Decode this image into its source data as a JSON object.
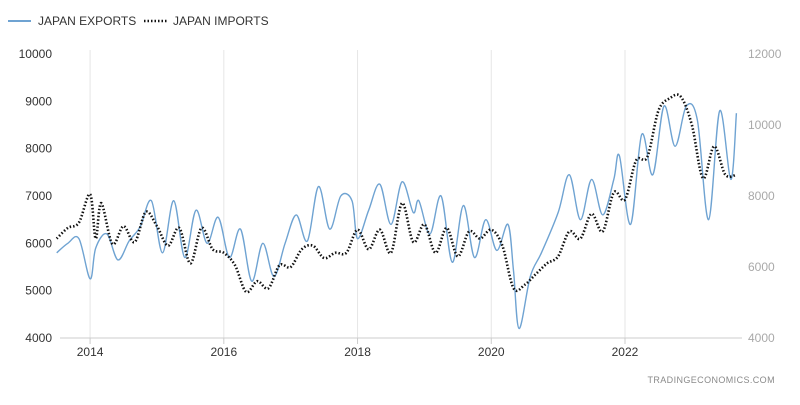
{
  "chart_data": {
    "type": "line",
    "legend": {
      "placement": "top-left",
      "entries": [
        "JAPAN EXPORTS",
        "JAPAN IMPORTS"
      ]
    },
    "credit": "TRADINGECONOMICS.COM",
    "x_ticks": [
      "2014",
      "2016",
      "2018",
      "2020",
      "2022"
    ],
    "y_left": {
      "ticks": [
        "4000",
        "5000",
        "6000",
        "7000",
        "8000",
        "9000",
        "10000"
      ],
      "range": [
        4000,
        10000
      ]
    },
    "y_right": {
      "ticks": [
        "4000",
        "6000",
        "8000",
        "10000",
        "12000"
      ],
      "range": [
        4000,
        12000
      ]
    },
    "grid": "vertical",
    "series": [
      {
        "name": "JAPAN EXPORTS",
        "axis": "left",
        "style": "solid",
        "color": "#6fa3d2",
        "points": [
          [
            "2013-07",
            5800
          ],
          [
            "2013-09",
            6000
          ],
          [
            "2013-11",
            6100
          ],
          [
            "2014-01",
            5250
          ],
          [
            "2014-02",
            5900
          ],
          [
            "2014-04",
            6200
          ],
          [
            "2014-06",
            5650
          ],
          [
            "2014-08",
            6050
          ],
          [
            "2014-10",
            6350
          ],
          [
            "2014-12",
            6900
          ],
          [
            "2015-02",
            5800
          ],
          [
            "2015-04",
            6900
          ],
          [
            "2015-06",
            5700
          ],
          [
            "2015-08",
            6700
          ],
          [
            "2015-10",
            6000
          ],
          [
            "2015-12",
            6550
          ],
          [
            "2016-02",
            5700
          ],
          [
            "2016-04",
            6300
          ],
          [
            "2016-06",
            5200
          ],
          [
            "2016-08",
            6000
          ],
          [
            "2016-10",
            5300
          ],
          [
            "2016-12",
            6000
          ],
          [
            "2017-02",
            6600
          ],
          [
            "2017-04",
            6050
          ],
          [
            "2017-06",
            7200
          ],
          [
            "2017-08",
            6300
          ],
          [
            "2017-10",
            7000
          ],
          [
            "2017-12",
            6900
          ],
          [
            "2018-01",
            6100
          ],
          [
            "2018-03",
            6700
          ],
          [
            "2018-05",
            7250
          ],
          [
            "2018-07",
            6400
          ],
          [
            "2018-09",
            7300
          ],
          [
            "2018-11",
            6650
          ],
          [
            "2018-12",
            6900
          ],
          [
            "2019-02",
            6200
          ],
          [
            "2019-04",
            7000
          ],
          [
            "2019-06",
            5600
          ],
          [
            "2019-08",
            6800
          ],
          [
            "2019-10",
            5700
          ],
          [
            "2019-12",
            6500
          ],
          [
            "2020-02",
            5850
          ],
          [
            "2020-04",
            6400
          ],
          [
            "2020-05",
            5400
          ],
          [
            "2020-06",
            4200
          ],
          [
            "2020-08",
            5300
          ],
          [
            "2020-10",
            5800
          ],
          [
            "2021-01",
            6650
          ],
          [
            "2021-03",
            7450
          ],
          [
            "2021-05",
            6500
          ],
          [
            "2021-07",
            7350
          ],
          [
            "2021-09",
            6600
          ],
          [
            "2021-11",
            7350
          ],
          [
            "2021-12",
            7850
          ],
          [
            "2022-02",
            6400
          ],
          [
            "2022-04",
            8300
          ],
          [
            "2022-06",
            7450
          ],
          [
            "2022-08",
            8900
          ],
          [
            "2022-10",
            8050
          ],
          [
            "2022-12",
            8900
          ],
          [
            "2023-02",
            8600
          ],
          [
            "2023-04",
            6500
          ],
          [
            "2023-06",
            8800
          ],
          [
            "2023-08",
            7350
          ],
          [
            "2023-09",
            8750
          ]
        ]
      },
      {
        "name": "JAPAN IMPORTS",
        "axis": "right",
        "style": "dotted",
        "color": "#111111",
        "points": [
          [
            "2013-07",
            6800
          ],
          [
            "2013-09",
            7100
          ],
          [
            "2013-11",
            7250
          ],
          [
            "2014-01",
            8050
          ],
          [
            "2014-02",
            6800
          ],
          [
            "2014-03",
            7800
          ],
          [
            "2014-05",
            6650
          ],
          [
            "2014-07",
            7150
          ],
          [
            "2014-09",
            6700
          ],
          [
            "2014-11",
            7550
          ],
          [
            "2015-01",
            7150
          ],
          [
            "2015-03",
            6600
          ],
          [
            "2015-05",
            7100
          ],
          [
            "2015-07",
            6100
          ],
          [
            "2015-09",
            7100
          ],
          [
            "2015-11",
            6500
          ],
          [
            "2016-01",
            6400
          ],
          [
            "2016-03",
            6050
          ],
          [
            "2016-05",
            5300
          ],
          [
            "2016-07",
            5600
          ],
          [
            "2016-09",
            5400
          ],
          [
            "2016-11",
            6050
          ],
          [
            "2017-01",
            6000
          ],
          [
            "2017-03",
            6500
          ],
          [
            "2017-05",
            6600
          ],
          [
            "2017-07",
            6250
          ],
          [
            "2017-09",
            6400
          ],
          [
            "2017-11",
            6400
          ],
          [
            "2018-01",
            7050
          ],
          [
            "2018-03",
            6500
          ],
          [
            "2018-05",
            7050
          ],
          [
            "2018-07",
            6400
          ],
          [
            "2018-09",
            7800
          ],
          [
            "2018-11",
            6700
          ],
          [
            "2019-01",
            7200
          ],
          [
            "2019-03",
            6400
          ],
          [
            "2019-05",
            7100
          ],
          [
            "2019-07",
            6300
          ],
          [
            "2019-09",
            7000
          ],
          [
            "2019-11",
            6800
          ],
          [
            "2020-01",
            7050
          ],
          [
            "2020-03",
            6600
          ],
          [
            "2020-05",
            5400
          ],
          [
            "2020-07",
            5500
          ],
          [
            "2020-09",
            5800
          ],
          [
            "2020-11",
            6100
          ],
          [
            "2021-01",
            6300
          ],
          [
            "2021-03",
            7000
          ],
          [
            "2021-05",
            6800
          ],
          [
            "2021-07",
            7500
          ],
          [
            "2021-09",
            7000
          ],
          [
            "2021-11",
            8100
          ],
          [
            "2022-01",
            7900
          ],
          [
            "2022-03",
            9000
          ],
          [
            "2022-05",
            9100
          ],
          [
            "2022-07",
            10400
          ],
          [
            "2022-09",
            10750
          ],
          [
            "2022-11",
            10800
          ],
          [
            "2023-01",
            10000
          ],
          [
            "2023-03",
            8500
          ],
          [
            "2023-05",
            9400
          ],
          [
            "2023-07",
            8600
          ],
          [
            "2023-09",
            8600
          ]
        ]
      }
    ]
  }
}
